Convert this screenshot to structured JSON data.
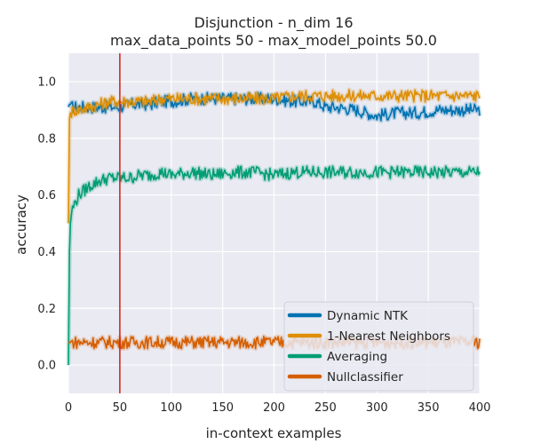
{
  "chart_data": {
    "type": "line",
    "title": "Disjunction - n_dim 16",
    "subtitle": "max_data_points 50 - max_model_points 50.0",
    "xlabel": "in-context examples",
    "ylabel": "accuracy",
    "xlim": [
      0,
      400
    ],
    "ylim": [
      -0.1,
      1.1
    ],
    "xticks": [
      "0",
      "50",
      "100",
      "150",
      "200",
      "250",
      "300",
      "350",
      "400"
    ],
    "yticks": [
      "0.0",
      "0.2",
      "0.4",
      "0.6",
      "0.8",
      "1.0"
    ],
    "grid": true,
    "legend_position": "bottom-right",
    "vline": {
      "x": 50,
      "color": "#d62728"
    },
    "series": [
      {
        "name": "Dynamic NTK",
        "color": "#0173b2",
        "x": [
          0,
          1,
          2,
          3,
          5,
          10,
          20,
          30,
          40,
          50,
          60,
          70,
          80,
          90,
          100,
          120,
          140,
          160,
          180,
          200,
          220,
          240,
          250,
          260,
          280,
          300,
          320,
          340,
          360,
          380,
          400
        ],
        "y": [
          0.91,
          0.92,
          0.92,
          0.91,
          0.91,
          0.91,
          0.91,
          0.91,
          0.91,
          0.91,
          0.92,
          0.92,
          0.92,
          0.93,
          0.93,
          0.94,
          0.94,
          0.94,
          0.94,
          0.94,
          0.93,
          0.93,
          0.91,
          0.91,
          0.9,
          0.88,
          0.89,
          0.89,
          0.9,
          0.9,
          0.9
        ]
      },
      {
        "name": "1-Nearest Neighbors",
        "color": "#de8f05",
        "x": [
          0,
          1,
          2,
          3,
          5,
          10,
          20,
          30,
          40,
          50,
          60,
          70,
          80,
          90,
          100,
          120,
          140,
          160,
          180,
          200,
          220,
          240,
          260,
          280,
          300,
          320,
          340,
          360,
          380,
          400
        ],
        "y": [
          0.5,
          0.87,
          0.89,
          0.89,
          0.9,
          0.9,
          0.91,
          0.92,
          0.93,
          0.93,
          0.93,
          0.93,
          0.93,
          0.94,
          0.94,
          0.94,
          0.94,
          0.94,
          0.94,
          0.94,
          0.95,
          0.95,
          0.95,
          0.95,
          0.95,
          0.95,
          0.95,
          0.95,
          0.95,
          0.95
        ]
      },
      {
        "name": "Averaging",
        "color": "#029e73",
        "x": [
          0,
          1,
          2,
          3,
          5,
          10,
          20,
          30,
          40,
          50,
          60,
          70,
          80,
          90,
          100,
          120,
          140,
          160,
          180,
          200,
          220,
          240,
          260,
          280,
          300,
          320,
          340,
          360,
          380,
          400
        ],
        "y": [
          0.0,
          0.4,
          0.5,
          0.54,
          0.56,
          0.6,
          0.63,
          0.65,
          0.66,
          0.66,
          0.66,
          0.67,
          0.67,
          0.68,
          0.67,
          0.68,
          0.67,
          0.68,
          0.68,
          0.67,
          0.68,
          0.68,
          0.68,
          0.68,
          0.68,
          0.68,
          0.68,
          0.68,
          0.68,
          0.68
        ]
      },
      {
        "name": "Nullclassifier",
        "color": "#d55e00",
        "x": [
          0,
          400
        ],
        "y": [
          0.08,
          0.08
        ]
      }
    ]
  }
}
